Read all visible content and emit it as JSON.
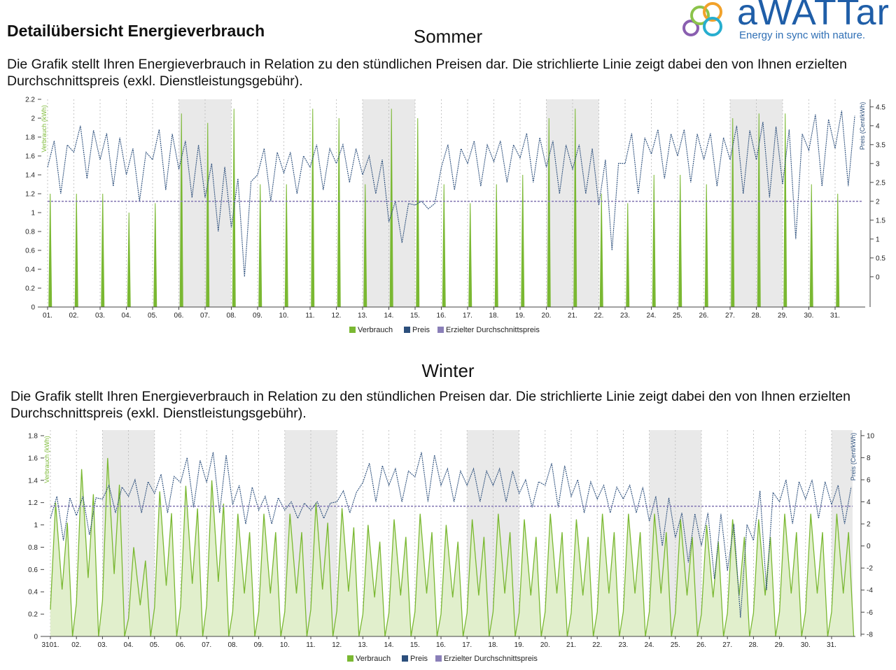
{
  "page": {
    "title": "Detailübersicht Energieverbrauch",
    "logo": {
      "word": "aWATTar",
      "tagline": "Energy in sync with nature."
    }
  },
  "sections": [
    {
      "season": "Sommer",
      "description": "Die Grafik stellt Ihren Energieverbrauch in Relation zu den stündlichen Preisen dar. Die strichlierte Linie zeigt dabei den von Ihnen erzielten Durchschnittspreis (exkl. Dienstleistungsgebühr)."
    },
    {
      "season": "Winter",
      "description": "Die Grafik stellt Ihren Energieverbrauch in Relation zu den stündlichen Preisen dar. Die strichlierte Linie zeigt dabei den von Ihnen erzielten Durchschnittspreis (exkl. Dienstleistungsgebühr)."
    }
  ],
  "colors": {
    "verbrauch": "#7ab832",
    "verbrauch_fill": "#e1efcc",
    "preis": "#2c4f7c",
    "durchschnitt": "#8a7fb8",
    "weekend": "#e9e9e9",
    "grid": "#b8b8b8"
  },
  "chart_data": [
    {
      "type": "line",
      "season": "Sommer",
      "categories": [
        "01.",
        "02.",
        "03.",
        "04.",
        "05.",
        "06.",
        "07.",
        "08.",
        "09.",
        "10.",
        "11.",
        "12.",
        "13.",
        "14.",
        "15.",
        "16.",
        "17.",
        "18.",
        "19.",
        "20.",
        "21.",
        "22.",
        "23.",
        "24.",
        "25.",
        "26.",
        "27.",
        "28.",
        "29.",
        "30.",
        "31."
      ],
      "ylabel": "Verbrauch (kWh)",
      "y2label": "Preis (Cent/kWh)",
      "ylim": [
        0,
        2.2
      ],
      "y2lim": [
        -0.8,
        4.7
      ],
      "yticks": [
        "0",
        "0.2",
        "0.4",
        "0.6",
        "0.8",
        "1",
        "1.2",
        "1.4",
        "1.6",
        "1.8",
        "2",
        "2.2"
      ],
      "y2ticks": [
        "0",
        "0.5",
        "1",
        "1.5",
        "2",
        "2.5",
        "3",
        "3.5",
        "4",
        "4.5"
      ],
      "weekend_start_days": [
        6,
        13,
        20,
        27
      ],
      "legend": [
        "Verbrauch",
        "Preis",
        "Erzielter Durchschnittspreis"
      ],
      "legend_position": "bottom",
      "average_price": 2.0,
      "consumption_spikes": [
        {
          "day": 1.1,
          "kwh": 1.2
        },
        {
          "day": 2.1,
          "kwh": 1.2
        },
        {
          "day": 3.1,
          "kwh": 1.2
        },
        {
          "day": 4.1,
          "kwh": 1.0
        },
        {
          "day": 5.1,
          "kwh": 1.1
        },
        {
          "day": 6.1,
          "kwh": 2.05
        },
        {
          "day": 7.1,
          "kwh": 1.95
        },
        {
          "day": 8.1,
          "kwh": 2.1
        },
        {
          "day": 9.1,
          "kwh": 1.3
        },
        {
          "day": 10.1,
          "kwh": 1.3
        },
        {
          "day": 11.1,
          "kwh": 2.1
        },
        {
          "day": 12.1,
          "kwh": 2.0
        },
        {
          "day": 13.1,
          "kwh": 1.3
        },
        {
          "day": 14.1,
          "kwh": 2.1
        },
        {
          "day": 15.1,
          "kwh": 2.0
        },
        {
          "day": 16.1,
          "kwh": 1.3
        },
        {
          "day": 17.1,
          "kwh": 1.1
        },
        {
          "day": 18.1,
          "kwh": 1.3
        },
        {
          "day": 19.1,
          "kwh": 1.4
        },
        {
          "day": 20.1,
          "kwh": 2.0
        },
        {
          "day": 21.1,
          "kwh": 2.1
        },
        {
          "day": 22.1,
          "kwh": 1.2
        },
        {
          "day": 23.1,
          "kwh": 1.1
        },
        {
          "day": 24.1,
          "kwh": 1.4
        },
        {
          "day": 25.1,
          "kwh": 1.4
        },
        {
          "day": 26.1,
          "kwh": 1.3
        },
        {
          "day": 27.1,
          "kwh": 2.0
        },
        {
          "day": 28.1,
          "kwh": 2.05
        },
        {
          "day": 29.1,
          "kwh": 2.05
        },
        {
          "day": 30.1,
          "kwh": 1.3
        },
        {
          "day": 31.1,
          "kwh": 1.2
        }
      ],
      "price_daily": [
        {
          "day": 1,
          "low": 2.2,
          "high": 3.6
        },
        {
          "day": 2,
          "low": 2.6,
          "high": 4.0
        },
        {
          "day": 3,
          "low": 2.4,
          "high": 3.8
        },
        {
          "day": 4,
          "low": 2.0,
          "high": 3.4
        },
        {
          "day": 5,
          "low": 2.3,
          "high": 3.9
        },
        {
          "day": 6,
          "low": 2.1,
          "high": 3.6
        },
        {
          "day": 7,
          "low": 1.2,
          "high": 3.0
        },
        {
          "day": 8,
          "low": 0.0,
          "high": 2.6
        },
        {
          "day": 9,
          "low": 2.0,
          "high": 3.4
        },
        {
          "day": 10,
          "low": 2.2,
          "high": 3.3
        },
        {
          "day": 11,
          "low": 2.3,
          "high": 3.5
        },
        {
          "day": 12,
          "low": 2.5,
          "high": 3.5
        },
        {
          "day": 13,
          "low": 2.2,
          "high": 3.2
        },
        {
          "day": 14,
          "low": 0.9,
          "high": 2.0
        },
        {
          "day": 15,
          "low": 1.8,
          "high": 2.0
        },
        {
          "day": 16,
          "low": 2.3,
          "high": 3.5
        },
        {
          "day": 17,
          "low": 2.4,
          "high": 3.6
        },
        {
          "day": 18,
          "low": 2.5,
          "high": 3.6
        },
        {
          "day": 19,
          "low": 2.5,
          "high": 3.8
        },
        {
          "day": 20,
          "low": 2.2,
          "high": 3.6
        },
        {
          "day": 21,
          "low": 2.2,
          "high": 3.5
        },
        {
          "day": 22,
          "low": 0.7,
          "high": 3.1
        },
        {
          "day": 23,
          "low": 2.2,
          "high": 3.8
        },
        {
          "day": 24,
          "low": 2.6,
          "high": 3.9
        },
        {
          "day": 25,
          "low": 2.5,
          "high": 3.9
        },
        {
          "day": 26,
          "low": 2.4,
          "high": 3.8
        },
        {
          "day": 27,
          "low": 2.2,
          "high": 4.0
        },
        {
          "day": 28,
          "low": 2.1,
          "high": 4.1
        },
        {
          "day": 29,
          "low": 1.0,
          "high": 3.9
        },
        {
          "day": 30,
          "low": 2.4,
          "high": 4.3
        },
        {
          "day": 31,
          "low": 2.4,
          "high": 4.4
        }
      ]
    },
    {
      "type": "line",
      "season": "Winter",
      "categories": [
        "01.",
        "02.",
        "03.",
        "04.",
        "05.",
        "06.",
        "07.",
        "08.",
        "09.",
        "10.",
        "11.",
        "12.",
        "13.",
        "14.",
        "15.",
        "16.",
        "17.",
        "18.",
        "19.",
        "20.",
        "21.",
        "22.",
        "23.",
        "24.",
        "25.",
        "26.",
        "27.",
        "28.",
        "29.",
        "30.",
        "31."
      ],
      "first_tick_label": "3101.",
      "ylabel": "Verbrauch (kWh)",
      "y2label": "Preis (Cent/kWh)",
      "ylim": [
        0,
        1.85
      ],
      "y2lim": [
        -8.2,
        10.5
      ],
      "yticks": [
        "0",
        "0.2",
        "0.4",
        "0.6",
        "0.8",
        "1",
        "1.2",
        "1.4",
        "1.6",
        "1.8"
      ],
      "y2ticks": [
        "-8",
        "-6",
        "-4",
        "-2",
        "0",
        "2",
        "4",
        "6",
        "8",
        "10"
      ],
      "weekend_start_days": [
        3,
        10,
        17,
        24,
        31
      ],
      "legend": [
        "Verbrauch",
        "Preis",
        "Erzielter Durchschnittspreis"
      ],
      "legend_position": "bottom",
      "average_price": 3.6,
      "consumption_daily": [
        {
          "day": 1,
          "kwh": 1.2
        },
        {
          "day": 2,
          "kwh": 1.5
        },
        {
          "day": 3,
          "kwh": 1.6
        },
        {
          "day": 4,
          "kwh": 0.8
        },
        {
          "day": 5,
          "kwh": 1.3
        },
        {
          "day": 6,
          "kwh": 1.35
        },
        {
          "day": 7,
          "kwh": 1.4
        },
        {
          "day": 8,
          "kwh": 1.1
        },
        {
          "day": 9,
          "kwh": 1.1
        },
        {
          "day": 10,
          "kwh": 1.1
        },
        {
          "day": 11,
          "kwh": 1.2
        },
        {
          "day": 12,
          "kwh": 1.15
        },
        {
          "day": 13,
          "kwh": 1.0
        },
        {
          "day": 14,
          "kwh": 1.05
        },
        {
          "day": 15,
          "kwh": 1.1
        },
        {
          "day": 16,
          "kwh": 1.0
        },
        {
          "day": 17,
          "kwh": 1.05
        },
        {
          "day": 18,
          "kwh": 1.1
        },
        {
          "day": 19,
          "kwh": 1.05
        },
        {
          "day": 20,
          "kwh": 1.1
        },
        {
          "day": 21,
          "kwh": 1.05
        },
        {
          "day": 22,
          "kwh": 1.1
        },
        {
          "day": 23,
          "kwh": 1.1
        },
        {
          "day": 24,
          "kwh": 1.1
        },
        {
          "day": 25,
          "kwh": 1.05
        },
        {
          "day": 26,
          "kwh": 1.0
        },
        {
          "day": 27,
          "kwh": 1.05
        },
        {
          "day": 28,
          "kwh": 1.05
        },
        {
          "day": 29,
          "kwh": 1.1
        },
        {
          "day": 30,
          "kwh": 1.1
        },
        {
          "day": 31,
          "kwh": 1.1
        }
      ],
      "price_daily": [
        {
          "day": 1,
          "low": 0.5,
          "high": 4.5
        },
        {
          "day": 2,
          "low": 1.0,
          "high": 4.5
        },
        {
          "day": 3,
          "low": 3.0,
          "high": 5.5
        },
        {
          "day": 4,
          "low": 3.0,
          "high": 6.0
        },
        {
          "day": 5,
          "low": 3.0,
          "high": 6.5
        },
        {
          "day": 6,
          "low": 3.5,
          "high": 8.0
        },
        {
          "day": 7,
          "low": 3.0,
          "high": 8.5
        },
        {
          "day": 8,
          "low": 2.0,
          "high": 5.5
        },
        {
          "day": 9,
          "low": 2.0,
          "high": 4.5
        },
        {
          "day": 10,
          "low": 2.5,
          "high": 4.0
        },
        {
          "day": 11,
          "low": 2.5,
          "high": 4.0
        },
        {
          "day": 12,
          "low": 3.0,
          "high": 5.0
        },
        {
          "day": 13,
          "low": 4.0,
          "high": 7.5
        },
        {
          "day": 14,
          "low": 4.0,
          "high": 7.0
        },
        {
          "day": 15,
          "low": 4.0,
          "high": 8.5
        },
        {
          "day": 16,
          "low": 4.0,
          "high": 7.0
        },
        {
          "day": 17,
          "low": 4.0,
          "high": 7.0
        },
        {
          "day": 18,
          "low": 4.0,
          "high": 7.0
        },
        {
          "day": 19,
          "low": 3.5,
          "high": 6.0
        },
        {
          "day": 20,
          "low": 3.5,
          "high": 7.5
        },
        {
          "day": 21,
          "low": 3.0,
          "high": 6.0
        },
        {
          "day": 22,
          "low": 3.0,
          "high": 5.5
        },
        {
          "day": 23,
          "low": 3.0,
          "high": 5.5
        },
        {
          "day": 24,
          "low": 0.0,
          "high": 4.5
        },
        {
          "day": 25,
          "low": -1.5,
          "high": 3.0
        },
        {
          "day": 26,
          "low": -3.0,
          "high": 3.0
        },
        {
          "day": 27,
          "low": -6.5,
          "high": 2.0
        },
        {
          "day": 28,
          "low": -4.0,
          "high": 5.0
        },
        {
          "day": 29,
          "low": 2.0,
          "high": 6.0
        },
        {
          "day": 30,
          "low": 2.5,
          "high": 6.0
        },
        {
          "day": 31,
          "low": 2.0,
          "high": 5.5
        }
      ]
    }
  ]
}
